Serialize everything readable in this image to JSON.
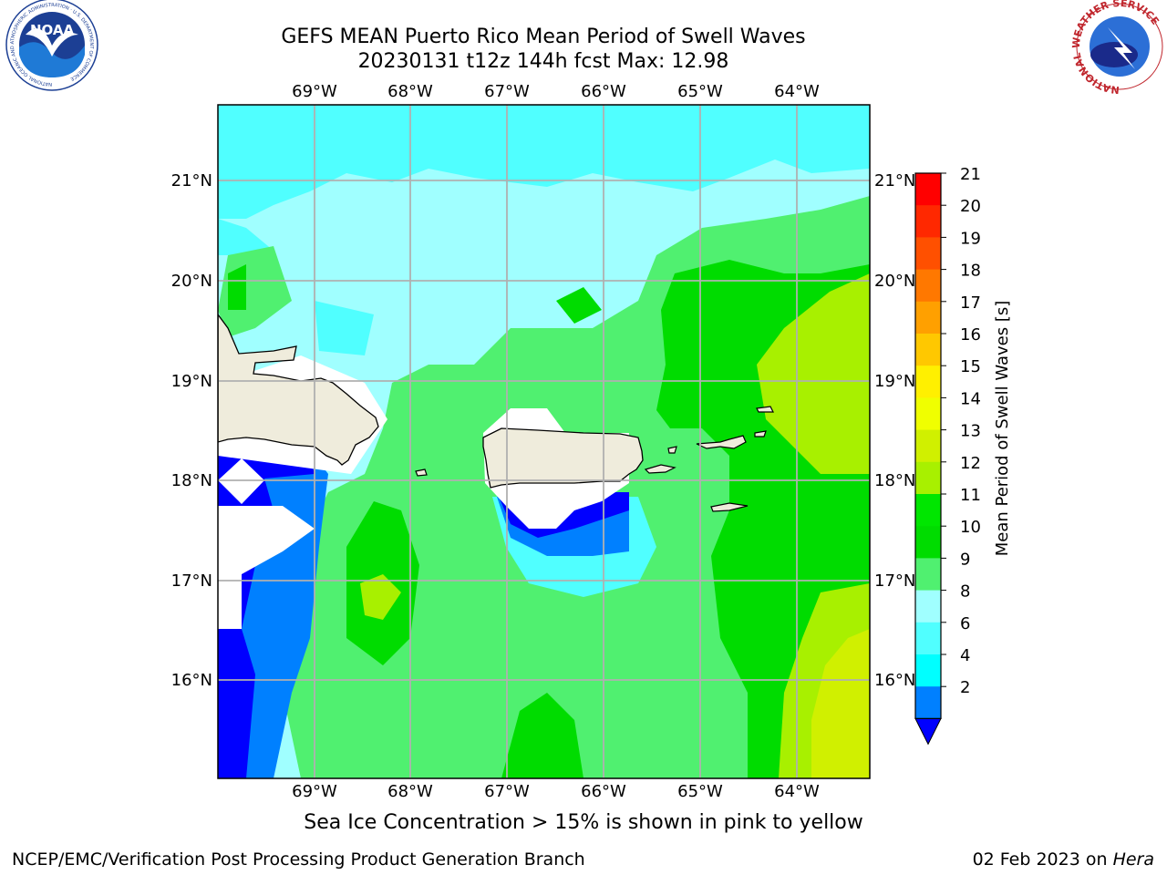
{
  "title": {
    "line1": "GEFS MEAN Puerto Rico Mean Period of Swell Waves",
    "line2": "20230131 t12z 144h fcst   Max: 12.98"
  },
  "map": {
    "lon_labels": [
      "69°W",
      "68°W",
      "67°W",
      "66°W",
      "65°W",
      "64°W"
    ],
    "lat_labels": [
      "21°N",
      "20°N",
      "19°N",
      "18°N",
      "17°N",
      "16°N"
    ],
    "land_color": "#efecdc"
  },
  "colorbar": {
    "label": "Mean Period of Swell Waves [s]",
    "ticks": [
      "21",
      "20",
      "19",
      "18",
      "17",
      "16",
      "15",
      "14",
      "13",
      "12",
      "11",
      "10",
      "9",
      "8",
      "6",
      "4",
      "2"
    ],
    "colors": [
      "#ff0000",
      "#ff2800",
      "#ff5000",
      "#ff7800",
      "#ffa000",
      "#ffc800",
      "#fff000",
      "#f0ff00",
      "#d0f000",
      "#a8f000",
      "#00e600",
      "#00dc00",
      "#50f070",
      "#a0ffff",
      "#50ffff",
      "#00ffff",
      "#0080ff",
      "#0000ff"
    ]
  },
  "caption": "Sea Ice Concentration > 15% is shown in pink to yellow",
  "footer": {
    "credit": "NCEP/EMC/Verification Post Processing Product Generation Branch",
    "date": "02 Feb 2023 on ",
    "machine": "Hera"
  },
  "logos": {
    "noaa_text": "NOAA",
    "noaa_ring": "NATIONAL OCEANIC AND ATMOSPHERIC ADMINISTRATION · U.S. DEPARTMENT OF COMMERCE",
    "nws_ring": "NATIONAL WEATHER SERVICE"
  }
}
